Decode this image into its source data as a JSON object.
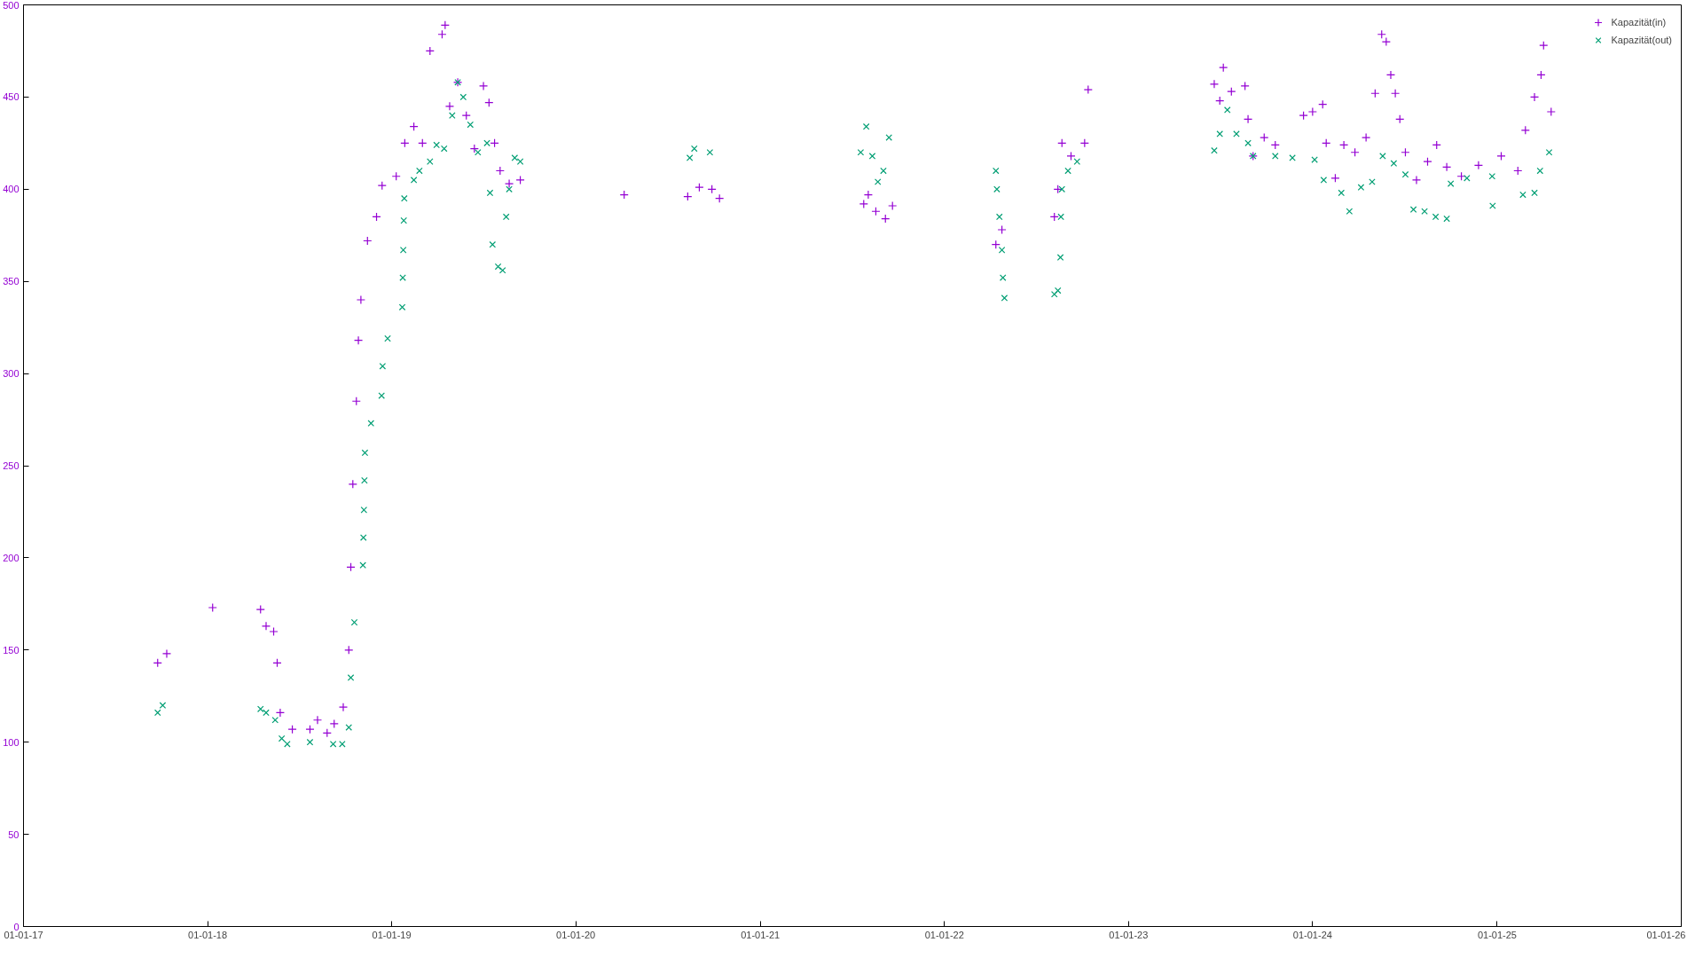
{
  "chart_data": {
    "type": "scatter",
    "legend": "top right",
    "grid": false,
    "xlim": [
      "2017-01-01",
      "2026-01-01"
    ],
    "xticks": [
      {
        "value": "2017-01-01",
        "label": "01-01-17"
      },
      {
        "value": "2018-01-01",
        "label": "01-01-18"
      },
      {
        "value": "2019-01-01",
        "label": "01-01-19"
      },
      {
        "value": "2020-01-01",
        "label": "01-01-20"
      },
      {
        "value": "2021-01-01",
        "label": "01-01-21"
      },
      {
        "value": "2022-01-01",
        "label": "01-01-22"
      },
      {
        "value": "2023-01-01",
        "label": "01-01-23"
      },
      {
        "value": "2024-01-01",
        "label": "01-01-24"
      },
      {
        "value": "2025-01-01",
        "label": "01-01-25"
      },
      {
        "value": "2026-01-01",
        "label": "01-01-26"
      }
    ],
    "ylim": [
      0,
      500
    ],
    "yticks": [
      0,
      50,
      100,
      150,
      200,
      250,
      300,
      350,
      400,
      450,
      500
    ],
    "series": [
      {
        "name": "Kapazität(in)",
        "color": "#9400d3",
        "marker": "cross",
        "x": [
          "2017-09-24",
          "2017-10-12",
          "2018-01-11",
          "2018-04-16",
          "2018-04-27",
          "2018-05-12",
          "2018-05-19",
          "2018-05-25",
          "2018-06-18",
          "2018-07-23",
          "2018-08-07",
          "2018-08-26",
          "2018-09-09",
          "2018-09-27",
          "2018-10-08",
          "2018-10-12",
          "2018-10-16",
          "2018-10-23",
          "2018-10-27",
          "2018-11-01",
          "2018-11-14",
          "2018-12-02",
          "2018-12-13",
          "2019-01-10",
          "2019-01-27",
          "2019-02-14",
          "2019-03-03",
          "2019-03-18",
          "2019-04-11",
          "2019-04-17",
          "2019-04-26",
          "2019-05-12",
          "2019-05-29",
          "2019-06-14",
          "2019-07-02",
          "2019-07-13",
          "2019-07-24",
          "2019-08-04",
          "2019-08-22",
          "2019-09-13",
          "2020-04-06",
          "2020-08-10",
          "2020-09-02",
          "2020-09-27",
          "2020-10-12",
          "2021-07-25",
          "2021-08-03",
          "2021-08-18",
          "2021-09-06",
          "2021-09-20",
          "2022-04-13",
          "2022-04-25",
          "2022-08-07",
          "2022-08-14",
          "2022-08-22",
          "2022-09-09",
          "2022-10-06",
          "2022-10-13",
          "2023-06-20",
          "2023-07-01",
          "2023-07-08",
          "2023-07-24",
          "2023-08-20",
          "2023-08-26",
          "2023-09-05",
          "2023-09-27",
          "2023-10-19",
          "2023-12-14",
          "2024-01-01",
          "2024-01-21",
          "2024-01-28",
          "2024-02-15",
          "2024-03-03",
          "2024-03-25",
          "2024-04-16",
          "2024-05-04",
          "2024-05-17",
          "2024-05-26",
          "2024-06-04",
          "2024-06-13",
          "2024-06-22",
          "2024-07-03",
          "2024-07-25",
          "2024-08-16",
          "2024-09-03",
          "2024-09-23",
          "2024-10-22",
          "2024-11-25",
          "2025-01-09",
          "2025-02-11",
          "2025-02-26",
          "2025-03-16",
          "2025-03-29",
          "2025-04-03",
          "2025-04-18"
        ],
        "values": [
          143,
          148,
          173,
          172,
          163,
          160,
          143,
          116,
          107,
          107,
          112,
          105,
          110,
          119,
          150,
          195,
          240,
          285,
          318,
          340,
          372,
          385,
          402,
          407,
          425,
          434,
          425,
          475,
          484,
          489,
          445,
          458,
          440,
          422,
          456,
          447,
          425,
          410,
          403,
          405,
          397,
          396,
          401,
          400,
          395,
          392,
          397,
          388,
          384,
          391,
          370,
          378,
          385,
          400,
          425,
          418,
          425,
          454,
          457,
          448,
          466,
          453,
          456,
          438,
          418,
          428,
          424,
          440,
          442,
          446,
          425,
          406,
          424,
          420,
          428,
          452,
          484,
          480,
          462,
          452,
          438,
          420,
          405,
          415,
          424,
          412,
          407,
          413,
          418,
          410,
          432,
          450,
          462,
          478,
          442
        ]
      },
      {
        "name": "Kapazität(out)",
        "color": "#009e73",
        "marker": "x",
        "x": [
          "2017-09-24",
          "2017-10-04",
          "2018-04-16",
          "2018-04-27",
          "2018-05-15",
          "2018-05-28",
          "2018-06-08",
          "2018-07-23",
          "2018-09-07",
          "2018-09-25",
          "2018-10-08",
          "2018-10-12",
          "2018-10-19",
          "2018-11-05",
          "2018-11-06",
          "2018-11-07",
          "2018-11-08",
          "2018-11-09",
          "2018-11-21",
          "2018-12-12",
          "2018-12-14",
          "2018-12-24",
          "2019-01-22",
          "2019-01-23",
          "2019-01-24",
          "2019-01-25",
          "2019-01-26",
          "2019-02-14",
          "2019-02-25",
          "2019-03-18",
          "2019-03-31",
          "2019-04-15",
          "2019-05-01",
          "2019-05-12",
          "2019-05-23",
          "2019-06-06",
          "2019-06-21",
          "2019-07-09",
          "2019-07-15",
          "2019-07-20",
          "2019-07-31",
          "2019-08-09",
          "2019-08-16",
          "2019-08-22",
          "2019-09-02",
          "2019-09-13",
          "2020-08-14",
          "2020-08-23",
          "2020-09-23",
          "2021-07-19",
          "2021-07-30",
          "2021-08-11",
          "2021-08-22",
          "2021-09-02",
          "2021-09-13",
          "2022-04-13",
          "2022-04-15",
          "2022-04-20",
          "2022-04-25",
          "2022-04-27",
          "2022-04-30",
          "2022-08-07",
          "2022-08-14",
          "2022-08-19",
          "2022-08-20",
          "2022-08-22",
          "2022-09-03",
          "2022-09-21",
          "2023-06-20",
          "2023-07-01",
          "2023-07-16",
          "2023-08-03",
          "2023-08-26",
          "2023-09-05",
          "2023-10-19",
          "2023-11-22",
          "2024-01-05",
          "2024-01-23",
          "2024-02-27",
          "2024-03-14",
          "2024-04-06",
          "2024-04-28",
          "2024-05-19",
          "2024-06-10",
          "2024-07-03",
          "2024-07-19",
          "2024-08-10",
          "2024-09-01",
          "2024-09-23",
          "2024-10-01",
          "2024-11-02",
          "2024-12-22",
          "2024-12-23",
          "2025-02-21",
          "2025-03-16",
          "2025-03-27",
          "2025-04-14"
        ],
        "values": [
          116,
          120,
          118,
          116,
          112,
          102,
          99,
          100,
          99,
          99,
          108,
          135,
          165,
          196,
          211,
          226,
          242,
          257,
          273,
          288,
          304,
          319,
          336,
          352,
          367,
          383,
          395,
          405,
          410,
          415,
          424,
          422,
          440,
          458,
          450,
          435,
          420,
          425,
          398,
          370,
          358,
          356,
          385,
          400,
          417,
          415,
          417,
          422,
          420,
          420,
          434,
          418,
          404,
          410,
          428,
          410,
          400,
          385,
          367,
          352,
          341,
          343,
          345,
          363,
          385,
          400,
          410,
          415,
          421,
          430,
          443,
          430,
          425,
          418,
          418,
          417,
          416,
          405,
          398,
          388,
          401,
          404,
          418,
          414,
          408,
          389,
          388,
          385,
          384,
          403,
          406,
          407,
          391,
          397,
          398,
          410,
          420
        ]
      }
    ]
  }
}
